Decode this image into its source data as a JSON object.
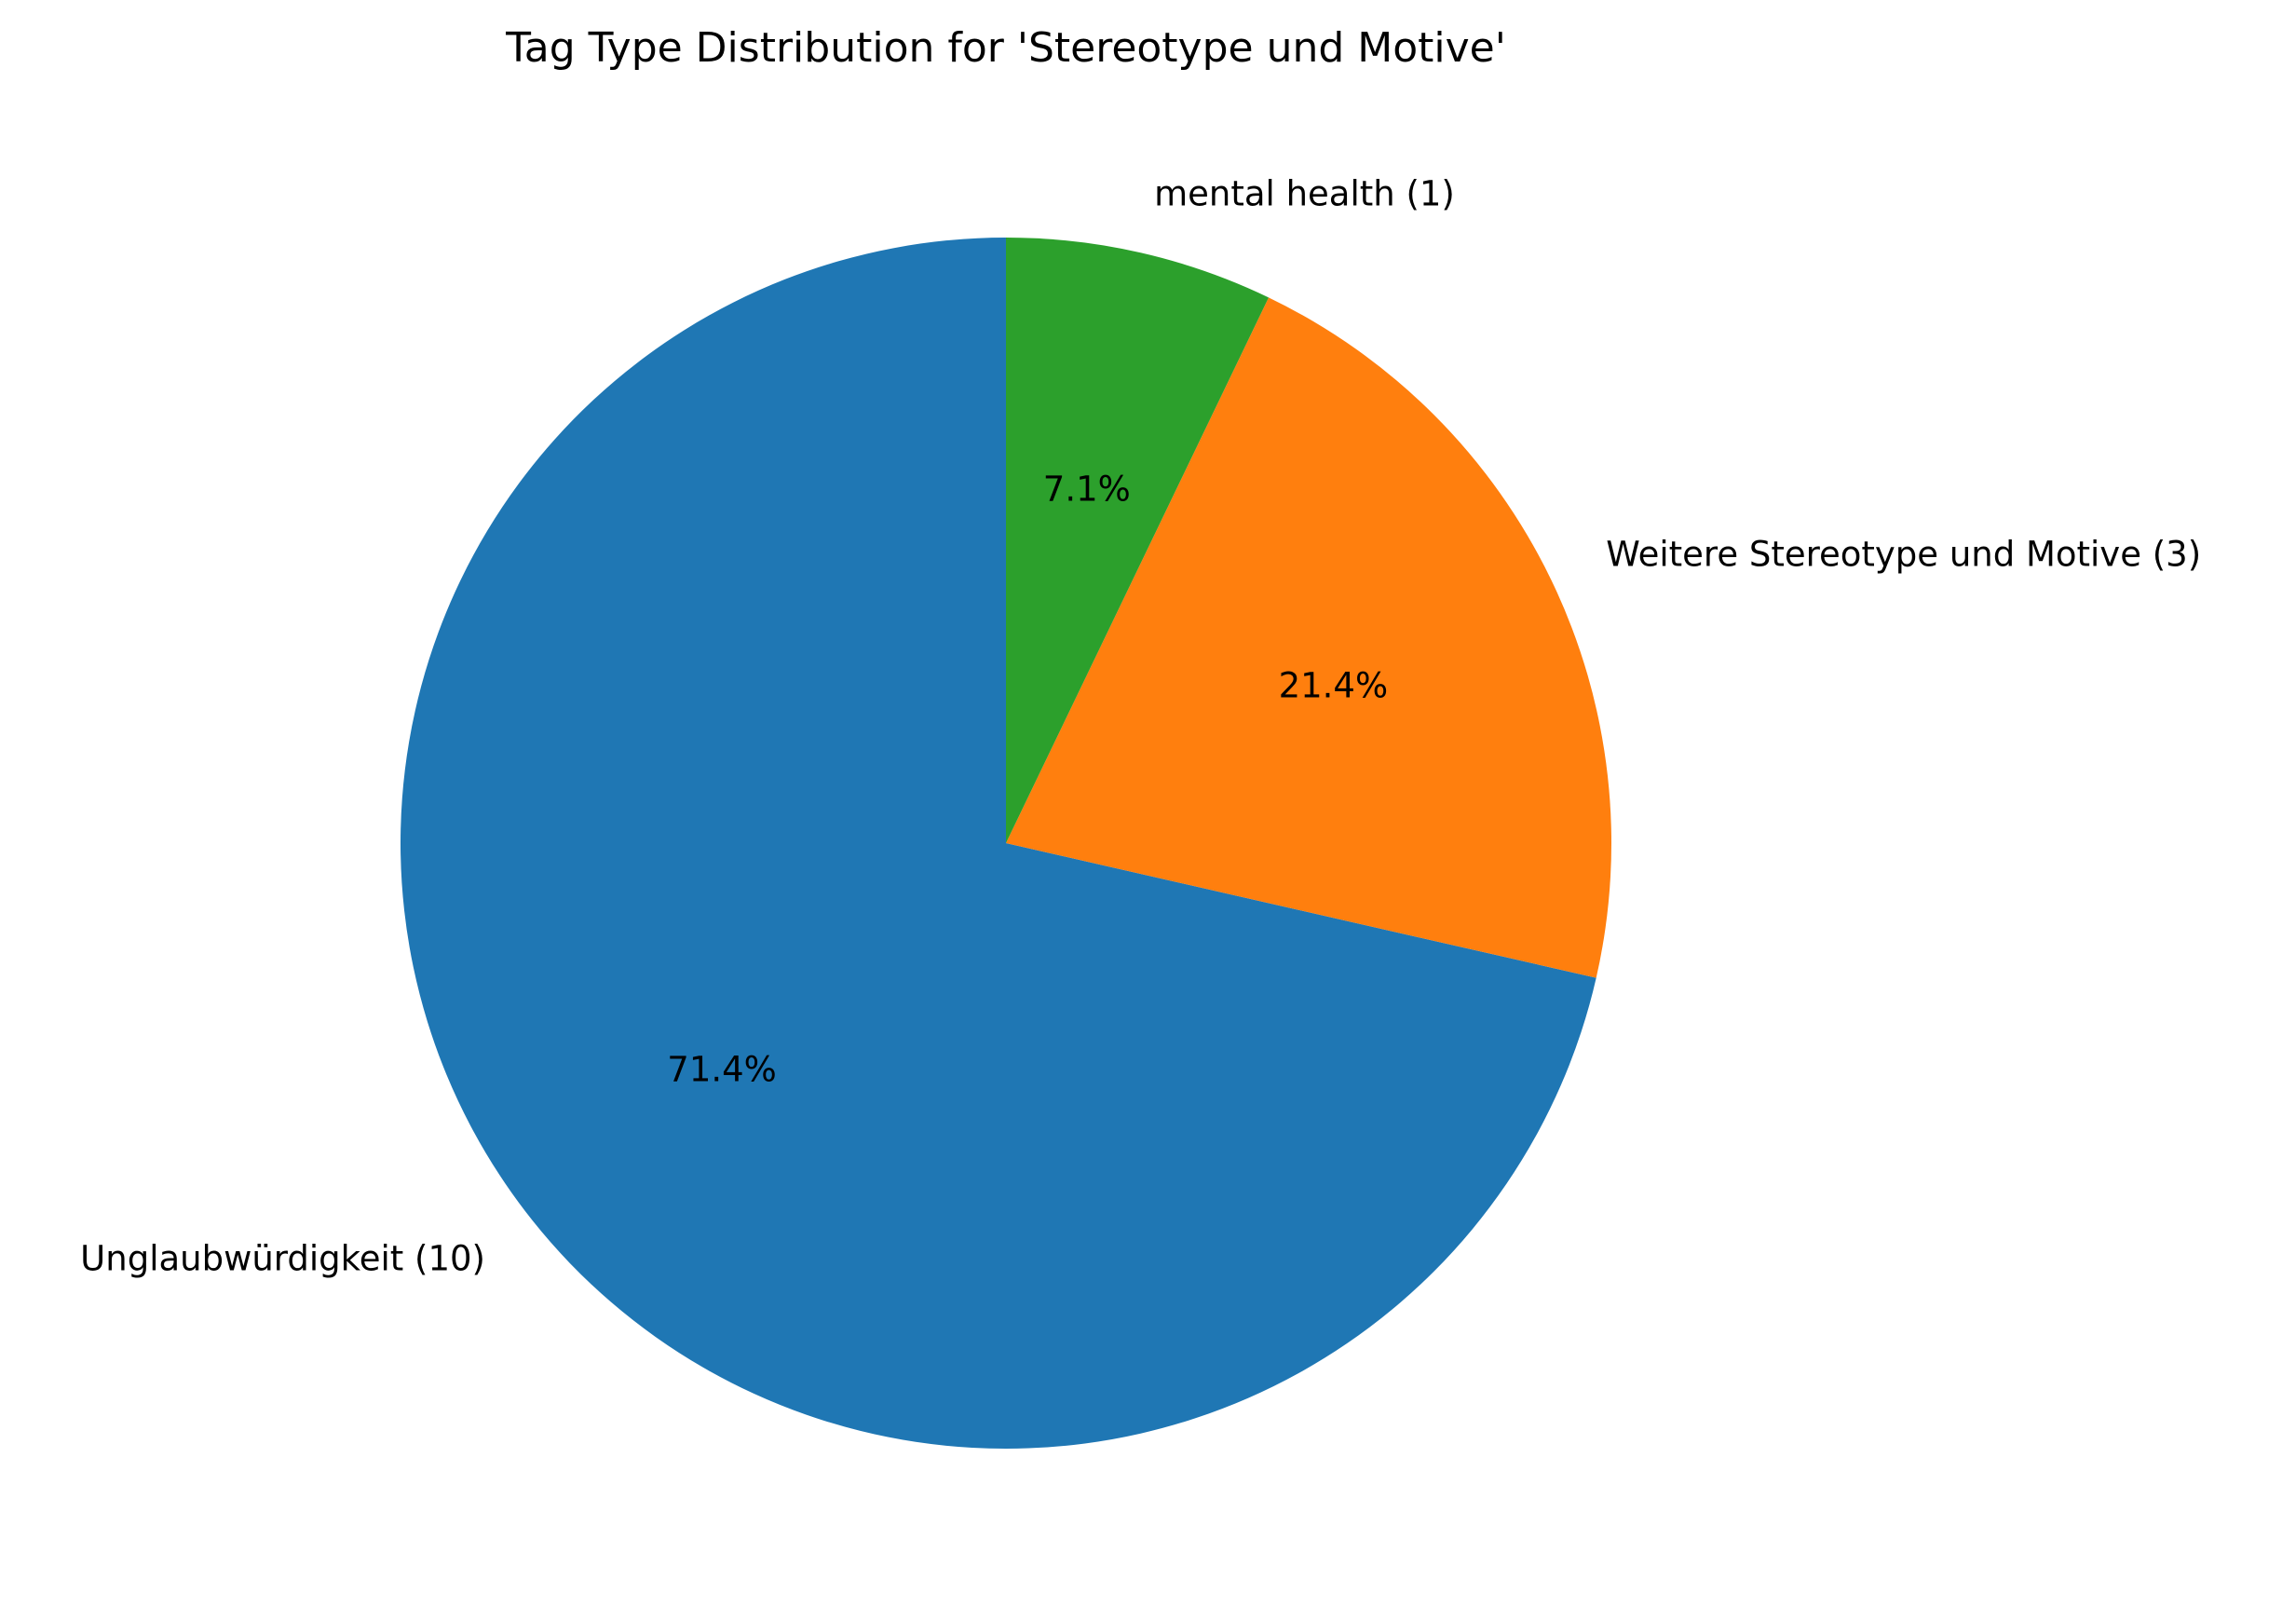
{
  "chart_data": {
    "type": "pie",
    "title": "Tag Type Distribution for 'Stereotype und Motive'",
    "start_angle_deg": 90,
    "direction": "counterclockwise",
    "slices": [
      {
        "label": "Unglaubwürdigkeit (10)",
        "value": 10,
        "percent_label": "71.4%",
        "color": "#1f77b4"
      },
      {
        "label": "Weitere Stereotype und Motive (3)",
        "value": 3,
        "percent_label": "21.4%",
        "color": "#ff7f0e"
      },
      {
        "label": "mental health (1)",
        "value": 1,
        "percent_label": "7.1%",
        "color": "#2ca02c"
      }
    ]
  }
}
